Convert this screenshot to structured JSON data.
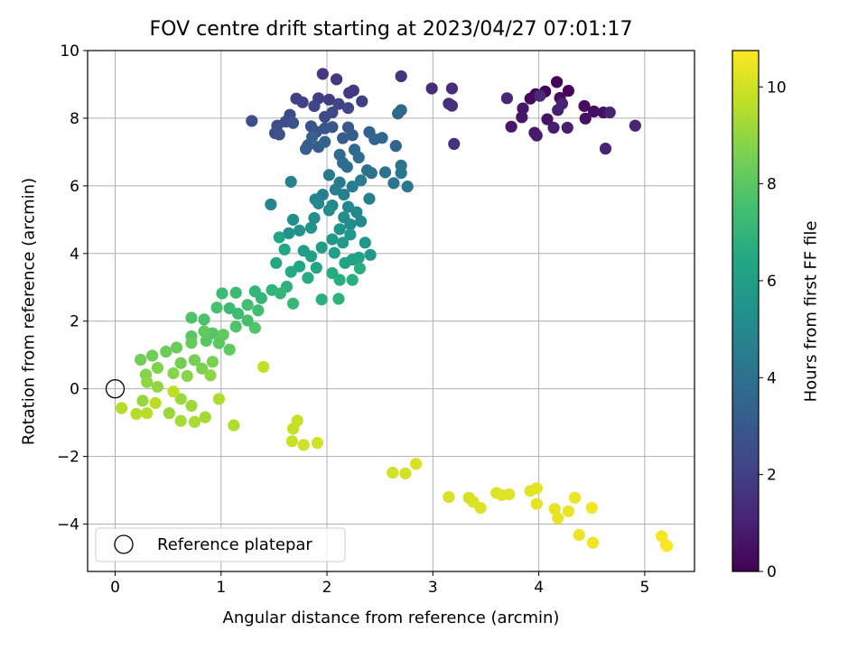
{
  "chart_data": {
    "type": "scatter",
    "title": "FOV centre drift starting at 2023/04/27 07:01:17",
    "xlabel": "Angular distance from reference (arcmin)",
    "ylabel": "Rotation from reference (arcmin)",
    "xlim": [
      -0.26,
      5.47
    ],
    "ylim": [
      -5.4,
      10
    ],
    "xticks": [
      0,
      1,
      2,
      3,
      4,
      5
    ],
    "yticks": [
      -4,
      -2,
      0,
      2,
      4,
      6,
      8,
      10
    ],
    "xtick_labels": [
      "0",
      "1",
      "2",
      "3",
      "4",
      "5"
    ],
    "ytick_labels": [
      "−4",
      "−2",
      "0",
      "2",
      "4",
      "6",
      "8",
      "10"
    ],
    "grid": true,
    "colorbar": {
      "label": "Hours from first FF file",
      "colormap": "viridis",
      "range": [
        0,
        10.75
      ],
      "ticks": [
        0,
        2,
        4,
        6,
        8,
        10
      ],
      "tick_labels": [
        "0",
        "2",
        "4",
        "6",
        "8",
        "10"
      ]
    },
    "legend": {
      "placement": "lower-left",
      "entries": [
        {
          "label": "Reference platepar",
          "marker": "open-circle"
        }
      ]
    },
    "reference_point": {
      "x": 0,
      "y": 0
    },
    "points": [
      {
        "x": 4.17,
        "y": 9.07,
        "h": 0.05
      },
      {
        "x": 4.06,
        "y": 8.79,
        "h": 0.1
      },
      {
        "x": 4.28,
        "y": 8.81,
        "h": 0.15
      },
      {
        "x": 3.97,
        "y": 8.71,
        "h": 0.2
      },
      {
        "x": 3.92,
        "y": 8.58,
        "h": 0.25
      },
      {
        "x": 4.2,
        "y": 8.6,
        "h": 0.3
      },
      {
        "x": 4.43,
        "y": 8.36,
        "h": 0.35
      },
      {
        "x": 4.52,
        "y": 8.2,
        "h": 0.4
      },
      {
        "x": 4.61,
        "y": 8.17,
        "h": 0.45
      },
      {
        "x": 4.44,
        "y": 7.99,
        "h": 0.5
      },
      {
        "x": 4.08,
        "y": 7.97,
        "h": 0.55
      },
      {
        "x": 3.85,
        "y": 8.29,
        "h": 0.6
      },
      {
        "x": 3.84,
        "y": 8.03,
        "h": 0.65
      },
      {
        "x": 3.74,
        "y": 7.75,
        "h": 0.7
      },
      {
        "x": 3.96,
        "y": 7.57,
        "h": 0.75
      },
      {
        "x": 3.98,
        "y": 7.49,
        "h": 0.8
      },
      {
        "x": 4.14,
        "y": 7.72,
        "h": 0.85
      },
      {
        "x": 4.27,
        "y": 7.72,
        "h": 0.9
      },
      {
        "x": 4.18,
        "y": 8.24,
        "h": 0.95
      },
      {
        "x": 4.22,
        "y": 8.43,
        "h": 1.0
      },
      {
        "x": 4.67,
        "y": 8.17,
        "h": 1.05
      },
      {
        "x": 4.91,
        "y": 7.78,
        "h": 1.1
      },
      {
        "x": 4.63,
        "y": 7.1,
        "h": 1.15
      },
      {
        "x": 3.7,
        "y": 8.59,
        "h": 1.2
      },
      {
        "x": 4.01,
        "y": 8.66,
        "h": 1.25
      },
      {
        "x": 3.18,
        "y": 8.88,
        "h": 1.35
      },
      {
        "x": 2.99,
        "y": 8.88,
        "h": 1.4
      },
      {
        "x": 3.15,
        "y": 8.43,
        "h": 1.45
      },
      {
        "x": 3.18,
        "y": 8.37,
        "h": 1.5
      },
      {
        "x": 3.2,
        "y": 7.24,
        "h": 1.55
      },
      {
        "x": 2.7,
        "y": 9.24,
        "h": 1.65
      },
      {
        "x": 1.96,
        "y": 9.31,
        "h": 1.7
      },
      {
        "x": 2.09,
        "y": 9.15,
        "h": 1.75
      },
      {
        "x": 2.21,
        "y": 8.75,
        "h": 1.8
      },
      {
        "x": 2.25,
        "y": 8.82,
        "h": 1.85
      },
      {
        "x": 1.92,
        "y": 8.59,
        "h": 1.9
      },
      {
        "x": 2.02,
        "y": 8.55,
        "h": 1.95
      },
      {
        "x": 2.33,
        "y": 8.5,
        "h": 2.0
      },
      {
        "x": 1.71,
        "y": 8.58,
        "h": 2.05
      },
      {
        "x": 1.77,
        "y": 8.47,
        "h": 2.1
      },
      {
        "x": 1.88,
        "y": 8.36,
        "h": 2.15
      },
      {
        "x": 2.11,
        "y": 8.42,
        "h": 2.2
      },
      {
        "x": 2.2,
        "y": 8.3,
        "h": 2.25
      },
      {
        "x": 2.05,
        "y": 8.17,
        "h": 2.3
      },
      {
        "x": 1.98,
        "y": 8.04,
        "h": 2.35
      },
      {
        "x": 1.65,
        "y": 8.1,
        "h": 2.4
      },
      {
        "x": 1.53,
        "y": 7.78,
        "h": 2.45
      },
      {
        "x": 1.61,
        "y": 7.9,
        "h": 2.5
      },
      {
        "x": 1.29,
        "y": 7.92,
        "h": 2.55
      },
      {
        "x": 1.51,
        "y": 7.56,
        "h": 2.6
      },
      {
        "x": 1.55,
        "y": 7.52,
        "h": 2.65
      },
      {
        "x": 1.68,
        "y": 7.86,
        "h": 2.7
      },
      {
        "x": 1.85,
        "y": 7.76,
        "h": 2.75
      },
      {
        "x": 1.9,
        "y": 7.6,
        "h": 2.8
      },
      {
        "x": 1.98,
        "y": 7.7,
        "h": 2.85
      },
      {
        "x": 2.05,
        "y": 7.74,
        "h": 2.9
      },
      {
        "x": 2.2,
        "y": 7.73,
        "h": 3.0
      },
      {
        "x": 2.24,
        "y": 7.5,
        "h": 3.05
      },
      {
        "x": 2.15,
        "y": 7.41,
        "h": 3.1
      },
      {
        "x": 1.82,
        "y": 7.2,
        "h": 3.15
      },
      {
        "x": 1.92,
        "y": 7.15,
        "h": 3.2
      },
      {
        "x": 1.8,
        "y": 7.09,
        "h": 3.25
      },
      {
        "x": 1.86,
        "y": 7.44,
        "h": 3.3
      },
      {
        "x": 1.98,
        "y": 7.3,
        "h": 3.35
      },
      {
        "x": 2.4,
        "y": 7.59,
        "h": 3.4
      },
      {
        "x": 2.45,
        "y": 7.38,
        "h": 3.45
      },
      {
        "x": 2.65,
        "y": 7.18,
        "h": 3.5
      },
      {
        "x": 2.52,
        "y": 7.42,
        "h": 3.55
      },
      {
        "x": 2.67,
        "y": 8.14,
        "h": 3.6
      },
      {
        "x": 2.7,
        "y": 8.24,
        "h": 3.65
      },
      {
        "x": 2.26,
        "y": 7.07,
        "h": 3.7
      },
      {
        "x": 2.12,
        "y": 6.92,
        "h": 3.75
      },
      {
        "x": 2.15,
        "y": 6.68,
        "h": 3.8
      },
      {
        "x": 2.3,
        "y": 6.84,
        "h": 3.85
      },
      {
        "x": 2.19,
        "y": 6.56,
        "h": 3.9
      },
      {
        "x": 2.38,
        "y": 6.46,
        "h": 3.95
      },
      {
        "x": 2.42,
        "y": 6.38,
        "h": 4.0
      },
      {
        "x": 2.55,
        "y": 6.4,
        "h": 4.05
      },
      {
        "x": 2.7,
        "y": 6.6,
        "h": 4.1
      },
      {
        "x": 2.7,
        "y": 6.38,
        "h": 4.15
      },
      {
        "x": 2.63,
        "y": 6.08,
        "h": 4.2
      },
      {
        "x": 2.76,
        "y": 5.98,
        "h": 4.25
      },
      {
        "x": 2.02,
        "y": 6.32,
        "h": 4.35
      },
      {
        "x": 2.12,
        "y": 6.1,
        "h": 4.4
      },
      {
        "x": 2.32,
        "y": 6.16,
        "h": 4.45
      },
      {
        "x": 2.24,
        "y": 5.98,
        "h": 4.5
      },
      {
        "x": 2.08,
        "y": 5.89,
        "h": 4.55
      },
      {
        "x": 1.96,
        "y": 5.74,
        "h": 4.6
      },
      {
        "x": 2.16,
        "y": 5.74,
        "h": 4.65
      },
      {
        "x": 2.4,
        "y": 5.62,
        "h": 4.7
      },
      {
        "x": 1.66,
        "y": 6.12,
        "h": 4.75
      },
      {
        "x": 1.47,
        "y": 5.45,
        "h": 4.8
      },
      {
        "x": 1.89,
        "y": 5.6,
        "h": 4.85
      },
      {
        "x": 1.92,
        "y": 5.48,
        "h": 4.9
      },
      {
        "x": 2.05,
        "y": 5.42,
        "h": 4.95
      },
      {
        "x": 2.2,
        "y": 5.38,
        "h": 5.0
      },
      {
        "x": 2.28,
        "y": 5.22,
        "h": 5.05
      },
      {
        "x": 2.32,
        "y": 4.95,
        "h": 5.1
      },
      {
        "x": 2.22,
        "y": 4.86,
        "h": 5.15
      },
      {
        "x": 2.16,
        "y": 5.07,
        "h": 5.2
      },
      {
        "x": 2.02,
        "y": 5.28,
        "h": 5.25
      },
      {
        "x": 1.88,
        "y": 5.05,
        "h": 5.3
      },
      {
        "x": 1.68,
        "y": 5.0,
        "h": 5.35
      },
      {
        "x": 1.74,
        "y": 4.68,
        "h": 5.4
      },
      {
        "x": 1.64,
        "y": 4.6,
        "h": 5.45
      },
      {
        "x": 1.85,
        "y": 4.76,
        "h": 5.5
      },
      {
        "x": 2.12,
        "y": 4.72,
        "h": 5.55
      },
      {
        "x": 2.22,
        "y": 4.56,
        "h": 5.6
      },
      {
        "x": 2.36,
        "y": 4.32,
        "h": 5.65
      },
      {
        "x": 2.41,
        "y": 3.96,
        "h": 5.7
      },
      {
        "x": 2.05,
        "y": 4.42,
        "h": 5.8
      },
      {
        "x": 2.15,
        "y": 4.32,
        "h": 5.85
      },
      {
        "x": 1.95,
        "y": 4.18,
        "h": 5.9
      },
      {
        "x": 1.78,
        "y": 4.08,
        "h": 5.95
      },
      {
        "x": 1.85,
        "y": 3.92,
        "h": 6.0
      },
      {
        "x": 2.07,
        "y": 4.02,
        "h": 6.05
      },
      {
        "x": 2.24,
        "y": 3.82,
        "h": 6.1
      },
      {
        "x": 2.3,
        "y": 3.88,
        "h": 6.15
      },
      {
        "x": 2.17,
        "y": 3.72,
        "h": 6.2
      },
      {
        "x": 1.9,
        "y": 3.58,
        "h": 6.25
      },
      {
        "x": 1.74,
        "y": 3.62,
        "h": 6.3
      },
      {
        "x": 1.55,
        "y": 4.48,
        "h": 6.35
      },
      {
        "x": 1.6,
        "y": 4.12,
        "h": 6.4
      },
      {
        "x": 1.52,
        "y": 3.72,
        "h": 6.45
      },
      {
        "x": 1.66,
        "y": 3.46,
        "h": 6.5
      },
      {
        "x": 1.82,
        "y": 3.28,
        "h": 6.55
      },
      {
        "x": 2.05,
        "y": 3.42,
        "h": 6.6
      },
      {
        "x": 2.12,
        "y": 3.22,
        "h": 6.65
      },
      {
        "x": 2.24,
        "y": 3.22,
        "h": 6.7
      },
      {
        "x": 2.31,
        "y": 3.56,
        "h": 6.75
      },
      {
        "x": 1.95,
        "y": 2.64,
        "h": 6.8
      },
      {
        "x": 2.11,
        "y": 2.66,
        "h": 6.85
      },
      {
        "x": 1.62,
        "y": 3.02,
        "h": 6.9
      },
      {
        "x": 1.48,
        "y": 2.92,
        "h": 6.95
      },
      {
        "x": 1.38,
        "y": 2.68,
        "h": 7.0
      },
      {
        "x": 1.32,
        "y": 2.88,
        "h": 7.05
      },
      {
        "x": 1.56,
        "y": 2.82,
        "h": 7.1
      },
      {
        "x": 1.68,
        "y": 2.52,
        "h": 7.15
      },
      {
        "x": 1.14,
        "y": 2.84,
        "h": 7.25
      },
      {
        "x": 1.01,
        "y": 2.82,
        "h": 7.3
      },
      {
        "x": 1.08,
        "y": 2.38,
        "h": 7.35
      },
      {
        "x": 1.16,
        "y": 2.22,
        "h": 7.4
      },
      {
        "x": 1.25,
        "y": 2.48,
        "h": 7.45
      },
      {
        "x": 1.35,
        "y": 2.32,
        "h": 7.5
      },
      {
        "x": 1.25,
        "y": 2.02,
        "h": 7.55
      },
      {
        "x": 0.96,
        "y": 2.4,
        "h": 7.6
      },
      {
        "x": 0.84,
        "y": 2.05,
        "h": 7.65
      },
      {
        "x": 0.72,
        "y": 2.1,
        "h": 7.7
      },
      {
        "x": 1.14,
        "y": 1.84,
        "h": 7.75
      },
      {
        "x": 1.32,
        "y": 1.8,
        "h": 7.8
      },
      {
        "x": 0.92,
        "y": 1.64,
        "h": 7.85
      },
      {
        "x": 0.72,
        "y": 1.55,
        "h": 7.9
      },
      {
        "x": 0.86,
        "y": 1.42,
        "h": 7.95
      },
      {
        "x": 0.98,
        "y": 1.35,
        "h": 8.0
      },
      {
        "x": 1.08,
        "y": 1.16,
        "h": 8.05
      },
      {
        "x": 1.02,
        "y": 1.6,
        "h": 8.1
      },
      {
        "x": 0.84,
        "y": 1.7,
        "h": 8.15
      },
      {
        "x": 0.72,
        "y": 1.36,
        "h": 8.2
      },
      {
        "x": 0.58,
        "y": 1.22,
        "h": 8.25
      },
      {
        "x": 0.48,
        "y": 1.1,
        "h": 8.3
      },
      {
        "x": 0.35,
        "y": 0.98,
        "h": 8.35
      },
      {
        "x": 0.24,
        "y": 0.86,
        "h": 8.4
      },
      {
        "x": 0.62,
        "y": 0.76,
        "h": 8.45
      },
      {
        "x": 0.75,
        "y": 0.85,
        "h": 8.5
      },
      {
        "x": 0.82,
        "y": 0.6,
        "h": 8.55
      },
      {
        "x": 0.92,
        "y": 0.8,
        "h": 8.6
      },
      {
        "x": 0.4,
        "y": 0.62,
        "h": 8.7
      },
      {
        "x": 0.29,
        "y": 0.42,
        "h": 8.75
      },
      {
        "x": 0.55,
        "y": 0.46,
        "h": 8.8
      },
      {
        "x": 0.68,
        "y": 0.38,
        "h": 8.85
      },
      {
        "x": 0.9,
        "y": 0.4,
        "h": 8.9
      },
      {
        "x": 0.3,
        "y": 0.2,
        "h": 8.95
      },
      {
        "x": 0.4,
        "y": 0.06,
        "h": 9.0
      },
      {
        "x": 0.26,
        "y": -0.35,
        "h": 9.05
      },
      {
        "x": 0.51,
        "y": -0.72,
        "h": 9.1
      },
      {
        "x": 0.62,
        "y": -0.3,
        "h": 9.15
      },
      {
        "x": 0.72,
        "y": -0.5,
        "h": 9.2
      },
      {
        "x": 0.85,
        "y": -0.84,
        "h": 9.25
      },
      {
        "x": 0.62,
        "y": -0.95,
        "h": 9.3
      },
      {
        "x": 0.75,
        "y": -0.98,
        "h": 9.35
      },
      {
        "x": 0.98,
        "y": -0.3,
        "h": 9.4
      },
      {
        "x": 1.12,
        "y": -1.08,
        "h": 9.45
      },
      {
        "x": 0.06,
        "y": -0.57,
        "h": 9.5
      },
      {
        "x": 0.2,
        "y": -0.74,
        "h": 9.55
      },
      {
        "x": 0.3,
        "y": -0.72,
        "h": 9.6
      },
      {
        "x": 0.38,
        "y": -0.42,
        "h": 9.65
      },
      {
        "x": 0.55,
        "y": -0.08,
        "h": 9.7
      },
      {
        "x": 1.4,
        "y": 0.65,
        "h": 9.75
      },
      {
        "x": 1.68,
        "y": -1.18,
        "h": 9.8
      },
      {
        "x": 1.72,
        "y": -0.94,
        "h": 9.85
      },
      {
        "x": 1.67,
        "y": -1.55,
        "h": 9.9
      },
      {
        "x": 1.78,
        "y": -1.66,
        "h": 9.95
      },
      {
        "x": 1.91,
        "y": -1.6,
        "h": 10.0
      },
      {
        "x": 2.62,
        "y": -2.48,
        "h": 10.02
      },
      {
        "x": 2.74,
        "y": -2.5,
        "h": 10.05
      },
      {
        "x": 2.84,
        "y": -2.22,
        "h": 10.08
      },
      {
        "x": 3.15,
        "y": -3.2,
        "h": 10.1
      },
      {
        "x": 3.34,
        "y": -3.22,
        "h": 10.12
      },
      {
        "x": 3.38,
        "y": -3.34,
        "h": 10.15
      },
      {
        "x": 3.45,
        "y": -3.52,
        "h": 10.18
      },
      {
        "x": 3.6,
        "y": -3.08,
        "h": 10.2
      },
      {
        "x": 3.65,
        "y": -3.14,
        "h": 10.23
      },
      {
        "x": 3.72,
        "y": -3.12,
        "h": 10.25
      },
      {
        "x": 3.92,
        "y": -3.02,
        "h": 10.28
      },
      {
        "x": 3.98,
        "y": -2.94,
        "h": 10.3
      },
      {
        "x": 3.98,
        "y": -3.4,
        "h": 10.33
      },
      {
        "x": 4.15,
        "y": -3.55,
        "h": 10.36
      },
      {
        "x": 4.18,
        "y": -3.82,
        "h": 10.39
      },
      {
        "x": 4.28,
        "y": -3.62,
        "h": 10.42
      },
      {
        "x": 4.34,
        "y": -3.22,
        "h": 10.45
      },
      {
        "x": 4.38,
        "y": -4.32,
        "h": 10.48
      },
      {
        "x": 4.51,
        "y": -4.55,
        "h": 10.52
      },
      {
        "x": 4.5,
        "y": -3.52,
        "h": 10.56
      },
      {
        "x": 5.16,
        "y": -4.36,
        "h": 10.6
      },
      {
        "x": 5.2,
        "y": -4.62,
        "h": 10.65
      },
      {
        "x": 5.21,
        "y": -4.65,
        "h": 10.7
      }
    ]
  }
}
